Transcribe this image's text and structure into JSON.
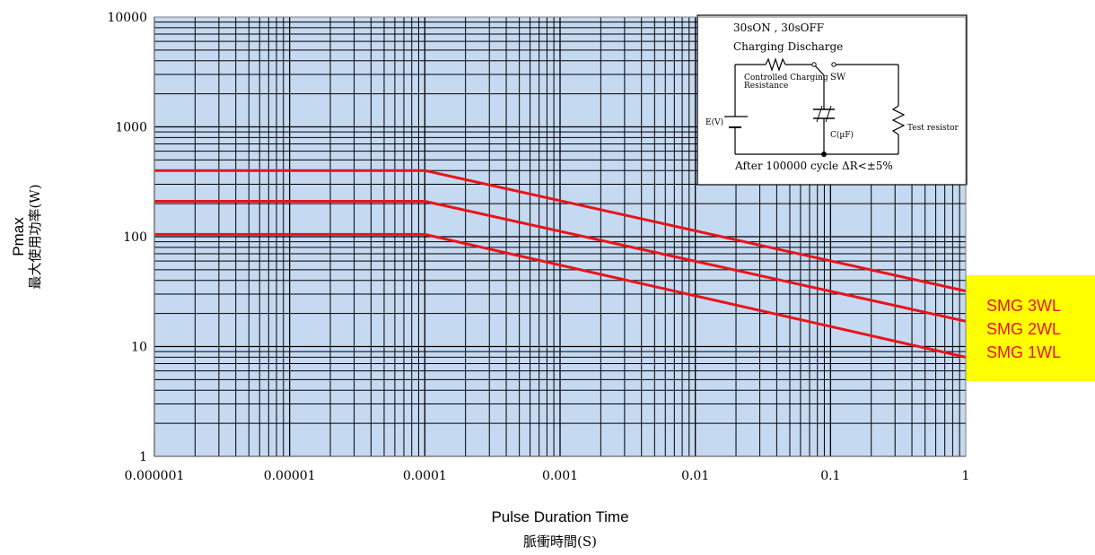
{
  "chart_data": {
    "type": "line",
    "x_scale": "log",
    "y_scale": "log",
    "xlim": [
      1e-06,
      1
    ],
    "ylim": [
      1,
      10000
    ],
    "xlabel": "Pulse Duration Time",
    "xlabel_sub": "脈衝時間(S)",
    "ylabel": "Pmax",
    "ylabel_sub": "最大使用功率(W)",
    "x_ticks": [
      "0.000001",
      "0.00001",
      "0.0001",
      "0.001",
      "0.01",
      "0.1",
      "1"
    ],
    "y_ticks": [
      "1",
      "10",
      "100",
      "1000",
      "10000"
    ],
    "grid": true,
    "plot_background": "#c5d9f1",
    "line_color": "#e8141b",
    "series": [
      {
        "name": "SMG 3WL",
        "x": [
          1e-06,
          0.0001,
          1
        ],
        "y": [
          400,
          400,
          32
        ]
      },
      {
        "name": "SMG 2WL",
        "x": [
          1e-06,
          0.0001,
          1
        ],
        "y": [
          210,
          210,
          17
        ]
      },
      {
        "name": "SMG 1WL",
        "x": [
          1e-06,
          0.0001,
          1
        ],
        "y": [
          105,
          105,
          8
        ]
      }
    ],
    "legend": {
      "position": "right",
      "background": "#ffff00",
      "labels": [
        "SMG 3WL",
        "SMG 2WL",
        "SMG 1WL"
      ]
    },
    "inset": {
      "title1": "30sON , 30sOFF",
      "title2": "Charging Discharge",
      "label_resistance_1": "Controlled Charging",
      "label_resistance_2": "Resistance",
      "label_sw": "SW",
      "label_source": "E(V)",
      "label_cap": "C(µF)",
      "label_test": "Test resistor",
      "footer": "After 100000 cycle ΔR<±5%"
    }
  }
}
